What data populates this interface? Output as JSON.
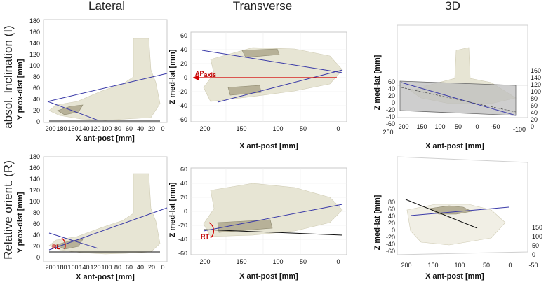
{
  "columns": [
    "Lateral",
    "Transverse",
    "3D"
  ],
  "rows": [
    "absol. Inclination (I)",
    "Relative orient. (R)"
  ],
  "axes": {
    "lateral_y": "Y prox-dist [mm]",
    "lateral_x": "X ant-post [mm]",
    "transverse_y": "Z med-lat [mm]",
    "transverse_x": "X ant-post [mm]",
    "d3_z": "Z med-lat [mm]",
    "d3_x": "X ant-post [mm]"
  },
  "annotations": {
    "ap_axis": "AP",
    "ap_axis_sub": "axis",
    "rl": "RL",
    "rt": "RT"
  },
  "ticks": {
    "lateral_y": [
      "180",
      "160",
      "140",
      "120",
      "100",
      "80",
      "60",
      "40",
      "20",
      "0"
    ],
    "lateral_x": [
      "200",
      "180",
      "160",
      "140",
      "120",
      "100",
      "80",
      "60",
      "40",
      "20",
      "0"
    ],
    "transverse_y": [
      "60",
      "40",
      "20",
      "0",
      "-20",
      "-40",
      "-60"
    ],
    "transverse_x": [
      "200",
      "150",
      "100",
      "50",
      "0"
    ],
    "d3_top_z": [
      "60",
      "40",
      "20",
      "0",
      "-20",
      "-40",
      "-60"
    ],
    "d3_top_right": [
      "160",
      "140",
      "120",
      "100",
      "80",
      "60",
      "40",
      "20",
      "0"
    ],
    "d3_top_x": [
      "250",
      "200",
      "150",
      "100",
      "50",
      "0",
      "-50",
      "-100"
    ],
    "d3_bot_z": [
      "80",
      "60",
      "40",
      "20",
      "0",
      "-20",
      "-40",
      "-60"
    ],
    "d3_bot_right": [
      "150",
      "100",
      "50",
      "0"
    ],
    "d3_bot_x": [
      "200",
      "150",
      "100",
      "50",
      "0",
      "-50"
    ]
  }
}
